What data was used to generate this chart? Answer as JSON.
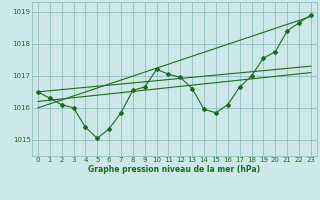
{
  "title": "Graphe pression niveau de la mer (hPa)",
  "bg_color": "#cce8e8",
  "grid_color": "#88b8b8",
  "line_color": "#1a6e1a",
  "xlim": [
    -0.5,
    23.5
  ],
  "ylim": [
    1014.5,
    1019.3
  ],
  "yticks": [
    1015,
    1016,
    1017,
    1018,
    1019
  ],
  "xticks": [
    0,
    1,
    2,
    3,
    4,
    5,
    6,
    7,
    8,
    9,
    10,
    11,
    12,
    13,
    14,
    15,
    16,
    17,
    18,
    19,
    20,
    21,
    22,
    23
  ],
  "series1_x": [
    0,
    1,
    2,
    3,
    4,
    5,
    6,
    7,
    8,
    9,
    10,
    11,
    12,
    13,
    14,
    15,
    16,
    17,
    18,
    19,
    20,
    21,
    22,
    23
  ],
  "series1_y": [
    1016.5,
    1016.3,
    1016.1,
    1016.0,
    1015.4,
    1015.05,
    1015.35,
    1015.85,
    1016.55,
    1016.65,
    1017.2,
    1017.05,
    1016.95,
    1016.6,
    1015.95,
    1015.85,
    1016.1,
    1016.65,
    1017.0,
    1017.55,
    1017.75,
    1018.4,
    1018.65,
    1018.9
  ],
  "series2_x": [
    0,
    23
  ],
  "series2_y": [
    1016.5,
    1017.3
  ],
  "series3_x": [
    0,
    23
  ],
  "series3_y": [
    1016.2,
    1017.1
  ],
  "series4_x": [
    0,
    23
  ],
  "series4_y": [
    1016.0,
    1018.85
  ]
}
